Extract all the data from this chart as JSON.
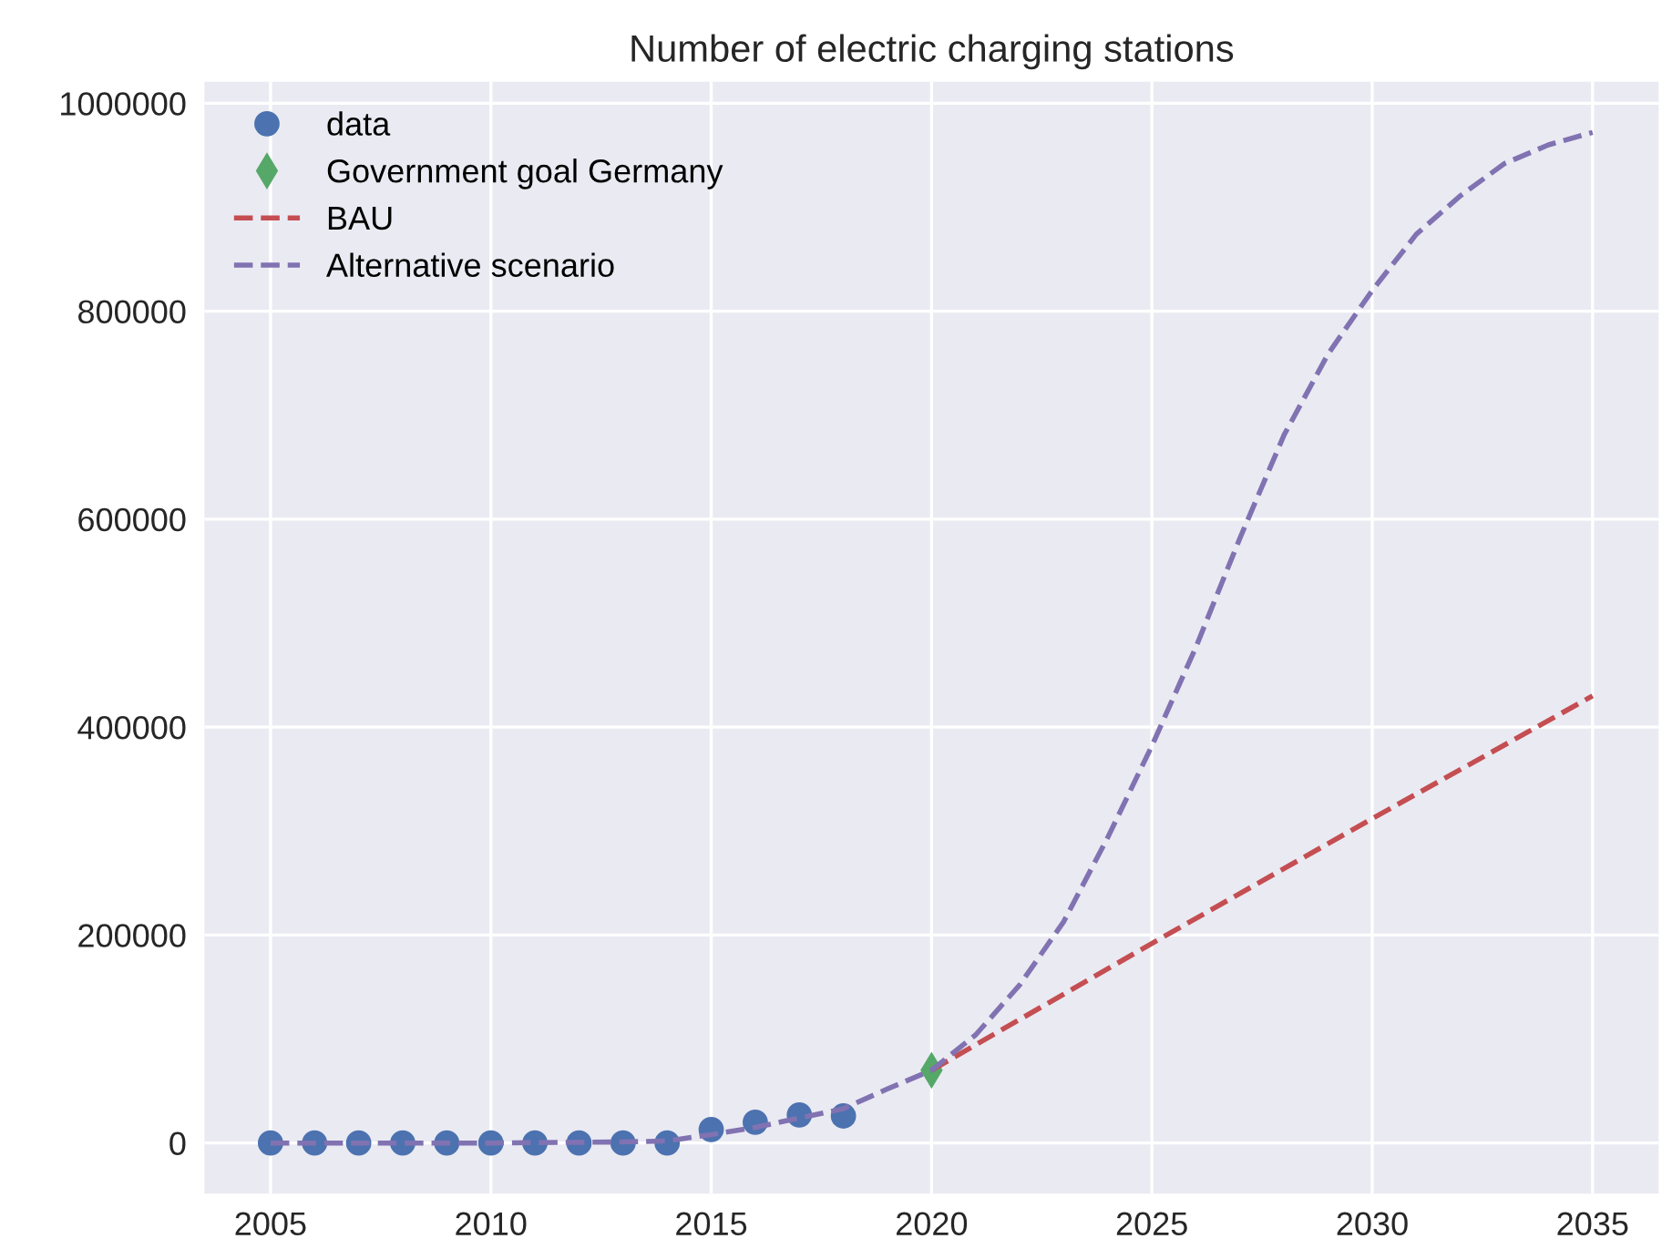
{
  "chart_data": {
    "type": "line",
    "title": "Number of electric charging stations",
    "series": [
      {
        "name": "data",
        "type": "scatter",
        "marker": "circle",
        "color": "#4c72b0",
        "x": [
          2005,
          2006,
          2007,
          2008,
          2009,
          2010,
          2011,
          2012,
          2013,
          2014,
          2015,
          2016,
          2017,
          2018
        ],
        "values": [
          0,
          0,
          0,
          0,
          0,
          0,
          0,
          0,
          0,
          0,
          13000,
          20000,
          27000,
          26000
        ]
      },
      {
        "name": "Government goal Germany",
        "type": "scatter",
        "marker": "diamond",
        "color": "#55a868",
        "x": [
          2020
        ],
        "values": [
          70000
        ]
      },
      {
        "name": "BAU",
        "line_style": "dashed",
        "color": "#c44e52",
        "x": [
          2020,
          2025,
          2030,
          2035
        ],
        "values": [
          70000,
          192000,
          312000,
          430000
        ]
      },
      {
        "name": "Alternative scenario",
        "line_style": "dashed",
        "color": "#8172b2",
        "x": [
          2005,
          2010,
          2013,
          2014,
          2015,
          2016,
          2017,
          2018,
          2019,
          2020,
          2021,
          2022,
          2023,
          2024,
          2025,
          2026,
          2027,
          2028,
          2029,
          2030,
          2031,
          2032,
          2033,
          2034,
          2035
        ],
        "values": [
          0,
          0,
          1000,
          2000,
          8000,
          15000,
          24000,
          33000,
          52000,
          70000,
          104000,
          152000,
          213000,
          294000,
          382000,
          477000,
          582000,
          681000,
          759000,
          820000,
          874000,
          911000,
          942000,
          960000,
          972000
        ]
      }
    ],
    "xlim": [
      2003.5,
      2036.5
    ],
    "xticks": [
      2005,
      2010,
      2015,
      2020,
      2025,
      2030,
      2035
    ],
    "ylim": [
      -48600,
      1020600
    ],
    "yticks": [
      0,
      200000,
      400000,
      600000,
      800000,
      1000000
    ],
    "grid": true,
    "legend": "top left"
  }
}
